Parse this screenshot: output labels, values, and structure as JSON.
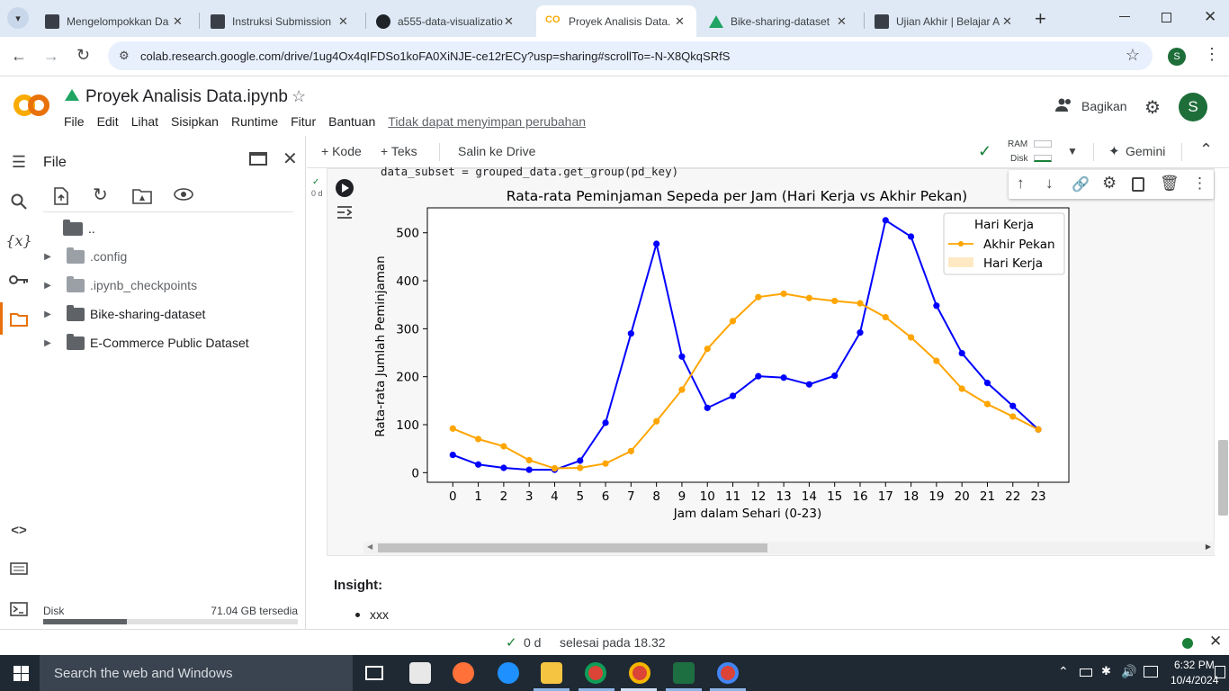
{
  "browser": {
    "tabs": [
      {
        "title": "Mengelompokkan Da",
        "favicon": "dicoding-icon"
      },
      {
        "title": "Instruksi Submission",
        "favicon": "dicoding-icon"
      },
      {
        "title": "a555-data-visualizatio",
        "favicon": "github-icon"
      },
      {
        "title": "Proyek Analisis Data.",
        "favicon": "colab-icon",
        "active": true
      },
      {
        "title": "Bike-sharing-dataset",
        "favicon": "google-drive-icon"
      },
      {
        "title": "Ujian Akhir | Belajar A",
        "favicon": "dicoding-icon"
      }
    ],
    "url": "colab.research.google.com/drive/1ug4Ox4qIFDSo1koFA0XiNJE-ce12rECy?usp=sharing#scrollTo=-N-X8QkqSRfS",
    "profile_initial": "S"
  },
  "colab": {
    "notebook_title": "Proyek Analisis Data.ipynb",
    "menu": [
      "File",
      "Edit",
      "Lihat",
      "Sisipkan",
      "Runtime",
      "Fitur",
      "Bantuan"
    ],
    "unsaved_notice": "Tidak dapat menyimpan perubahan",
    "share_label": "Bagikan",
    "avatar_initial": "S",
    "toolbar": {
      "add_code": "+ Kode",
      "add_text": "+ Teks",
      "copy_to_drive": "Salin ke Drive",
      "ram_label": "RAM",
      "disk_label": "Disk",
      "gemini_label": "Gemini"
    }
  },
  "file_panel": {
    "title": "File",
    "items": [
      {
        "name": "..",
        "type": "parent"
      },
      {
        "name": ".config",
        "type": "folder",
        "hidden": true
      },
      {
        "name": ".ipynb_checkpoints",
        "type": "folder",
        "hidden": true
      },
      {
        "name": "Bike-sharing-dataset",
        "type": "folder"
      },
      {
        "name": "E-Commerce Public Dataset",
        "type": "folder"
      }
    ],
    "disk_label": "Disk",
    "disk_free": "71.04 GB tersedia",
    "disk_used_fraction": 0.33
  },
  "cell": {
    "code_line": "data_subset = grouped_data.get_group(pd_key)",
    "exec_time": "0 d"
  },
  "chart_data": {
    "type": "line",
    "title": "Rata-rata Peminjaman Sepeda per Jam (Hari Kerja vs Akhir Pekan)",
    "xlabel": "Jam dalam Sehari (0-23)",
    "ylabel": "Rata-rata Jumlah Peminjaman",
    "x": [
      0,
      1,
      2,
      3,
      4,
      5,
      6,
      7,
      8,
      9,
      10,
      11,
      12,
      13,
      14,
      15,
      16,
      17,
      18,
      19,
      20,
      21,
      22,
      23
    ],
    "xlim": [
      -1,
      24.2
    ],
    "ylim": [
      -20,
      552
    ],
    "yticks": [
      0,
      100,
      200,
      300,
      400,
      500
    ],
    "series": [
      {
        "name": "",
        "color": "#0000ff",
        "values": [
          37,
          17,
          10,
          6,
          6,
          25,
          104,
          290,
          477,
          242,
          135,
          160,
          201,
          198,
          184,
          202,
          292,
          526,
          492,
          348,
          249,
          187,
          139,
          90
        ]
      },
      {
        "name": "Akhir Pekan",
        "color": "#ffa500",
        "values": [
          92,
          70,
          55,
          26,
          9,
          10,
          19,
          45,
          107,
          173,
          258,
          316,
          366,
          373,
          364,
          358,
          353,
          324,
          282,
          233,
          175,
          143,
          117,
          90
        ]
      }
    ],
    "legend": {
      "title": "Hari Kerja",
      "entries": [
        {
          "label": "Akhir Pekan",
          "kind": "line",
          "color": "#ffa500"
        },
        {
          "label": "Hari Kerja",
          "kind": "patch",
          "color": "#ffe9c4"
        }
      ],
      "position": "top-right"
    },
    "grid": false
  },
  "notebook": {
    "insight_heading": "Insight:",
    "bullet": "xxx"
  },
  "status": {
    "elapsed": "0 d",
    "finished": "selesai pada 18.32"
  },
  "taskbar": {
    "search_placeholder": "Search the web and Windows",
    "time": "6:32 PM",
    "date": "10/4/2024"
  }
}
